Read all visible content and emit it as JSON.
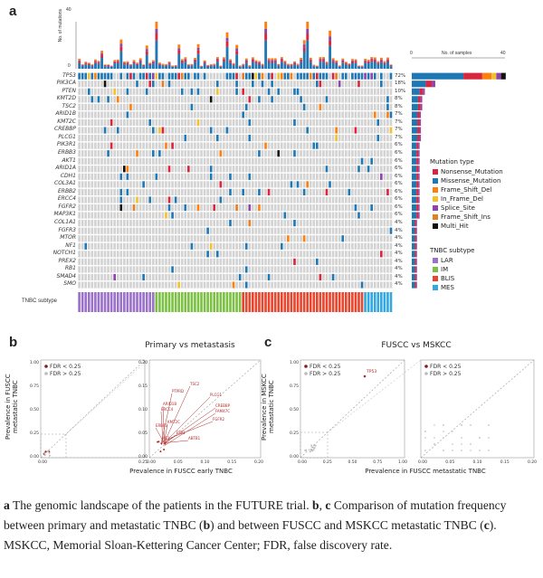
{
  "panel_a": {
    "letter": "a",
    "top_axis_label": "No. of mutations",
    "top_axis_max": "40",
    "top_axis_min": "0",
    "right_axis_label": "No. of samples",
    "right_axis_min": "0",
    "right_axis_max": "40",
    "genes": [
      "TP53",
      "PIK3CA",
      "PTEN",
      "KMT2D",
      "TSC2",
      "ARID1B",
      "KMT2C",
      "CREBBP",
      "PLCG1",
      "PIK3R1",
      "ERBB3",
      "AKT1",
      "ARID1A",
      "CDH1",
      "COL3A1",
      "ERBB2",
      "ERCC4",
      "FGFR2",
      "MAP3K1",
      "COL1A1",
      "FGFR3",
      "MTOR",
      "NF1",
      "NOTCH1",
      "PREX2",
      "RB1",
      "SMAD4",
      "SMO"
    ],
    "percentages": [
      "72%",
      "18%",
      "10%",
      "8%",
      "8%",
      "7%",
      "7%",
      "7%",
      "7%",
      "6%",
      "6%",
      "6%",
      "6%",
      "6%",
      "6%",
      "6%",
      "6%",
      "6%",
      "6%",
      "4%",
      "4%",
      "4%",
      "4%",
      "4%",
      "4%",
      "4%",
      "4%",
      "4%"
    ],
    "subtype_label": "TNBC subtype",
    "mutation_legend_title": "Mutation type",
    "mutation_types": [
      {
        "label": "Nonsense_Mutation",
        "color": "#d7263d"
      },
      {
        "label": "Missense_Mutation",
        "color": "#1f77b4"
      },
      {
        "label": "Frame_Shift_Del",
        "color": "#ff7f0e"
      },
      {
        "label": "In_Frame_Del",
        "color": "#f2c12e"
      },
      {
        "label": "Splice_Site",
        "color": "#8e44ad"
      },
      {
        "label": "Frame_Shift_Ins",
        "color": "#e67e22"
      },
      {
        "label": "Multi_Hit",
        "color": "#111111"
      }
    ],
    "subtype_legend_title": "TNBC subtype",
    "subtypes": [
      {
        "label": "LAR",
        "color": "#9b72c9"
      },
      {
        "label": "IM",
        "color": "#7cc144"
      },
      {
        "label": "BLIS",
        "color": "#e8472f"
      },
      {
        "label": "MES",
        "color": "#35a8e0"
      }
    ]
  },
  "panel_b": {
    "letter": "b",
    "title": "Primary vs metastasis",
    "ylabel": "Prevalence in FUSCC metastatic TNBC",
    "xlabel": "Prevalence in FUSCC early TNBC",
    "legend_sig": "FDR < 0.25",
    "legend_nonsig": "FDR > 0.25",
    "left_yticks": [
      "1.00",
      "0.75",
      "0.50",
      "0.25",
      "0.00"
    ],
    "left_xticks": [
      "0.00",
      "0.25"
    ],
    "right_yticks": [
      "0.20",
      "0.15",
      "0.10",
      "0.05",
      "0.00"
    ],
    "right_xticks": [
      "0.00",
      "0.05",
      "0.10",
      "0.15",
      "0.20"
    ],
    "gene_labels": [
      "TSC2",
      "PTPRD",
      "PLCG1",
      "CREBBP",
      "ARID1B",
      "FAM47C",
      "ERCC4",
      "FGFR2",
      "KMT2C",
      "NF1",
      "ABTB1",
      "FSP1",
      "ERBB3"
    ]
  },
  "panel_c": {
    "letter": "c",
    "title": "FUSCC vs MSKCC",
    "ylabel": "Prevalence in MSKCC metastatic TNBC",
    "xlabel": "Prevalence in FUSCC metastatic TNBC",
    "legend_sig": "FDR < 0.25",
    "legend_nonsig": "FDR > 0.25",
    "left_yticks": [
      "1.00",
      "0.75",
      "0.50",
      "0.25",
      "0.00"
    ],
    "left_xticks": [
      "0.00",
      "0.25",
      "0.50",
      "0.75",
      "1.00"
    ],
    "right_xticks": [
      "0.00",
      "0.05",
      "0.10",
      "0.15",
      "0.20"
    ],
    "gene_labels": [
      "TP53"
    ]
  },
  "caption": {
    "part1": "The genomic landscape of the patients in the FUTURE trial. ",
    "b": "b",
    "sep1": ", ",
    "c": "c",
    "part2": " Comparison of mutation frequency between primary and metastatic TNBC (",
    "b2": "b",
    "part3": ") and between FUSCC and MSKCC metastatic TNBC (",
    "c2": "c",
    "part4": "). MSKCC,  Memorial Sloan-Kettering Cancer Center; FDR, false discovery rate.",
    "lead": "a"
  }
}
